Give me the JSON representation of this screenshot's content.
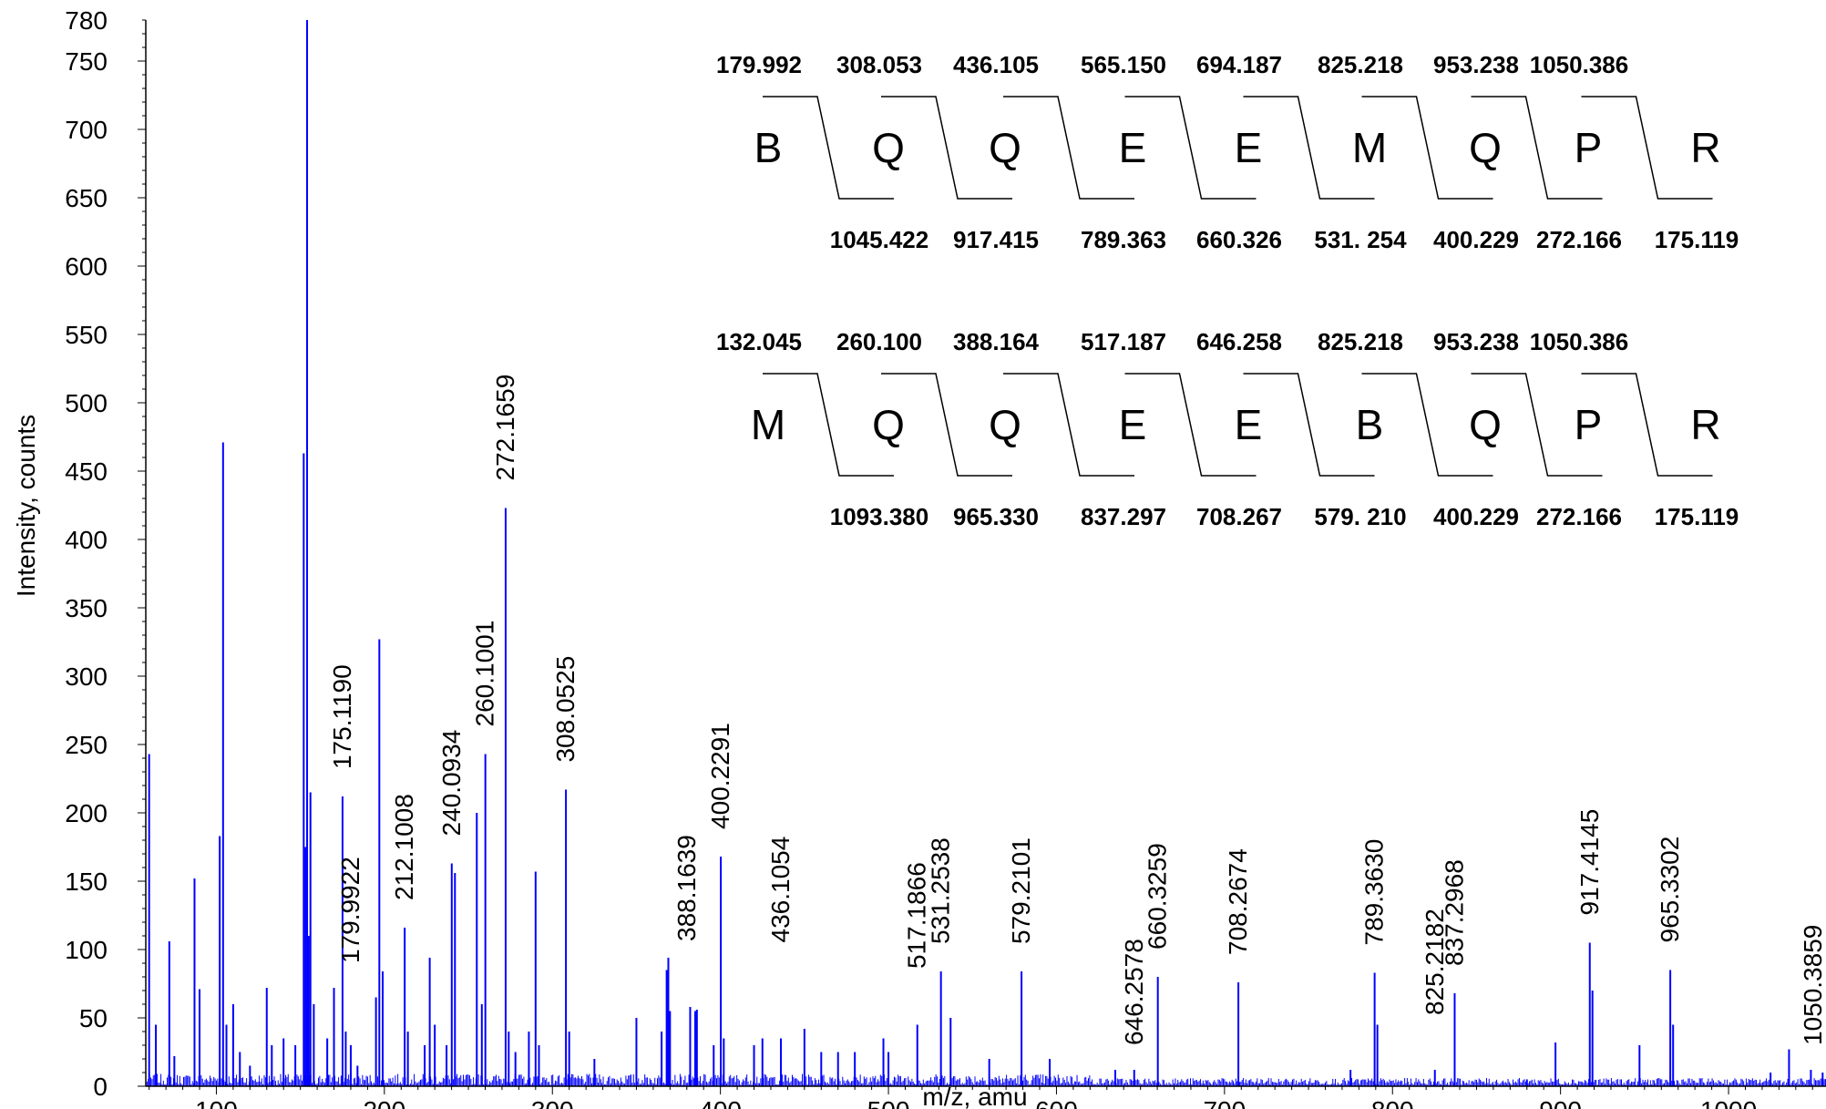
{
  "chart_data": {
    "type": "bar",
    "xlabel": "m/z, amu",
    "ylabel": "Intensity, counts",
    "xlim": [
      58,
      1058
    ],
    "ylim": [
      0,
      780
    ],
    "x_ticks": [
      100,
      200,
      300,
      400,
      500,
      600,
      700,
      800,
      900,
      1000
    ],
    "y_ticks": [
      0,
      50,
      100,
      150,
      200,
      250,
      300,
      350,
      400,
      450,
      500,
      550,
      600,
      650,
      700,
      750,
      780
    ],
    "series_color": "#0000ff",
    "peaks": [
      {
        "mz": 60.0,
        "i": 243
      },
      {
        "mz": 64.0,
        "i": 45
      },
      {
        "mz": 72.0,
        "i": 106
      },
      {
        "mz": 75.0,
        "i": 22
      },
      {
        "mz": 87.0,
        "i": 152
      },
      {
        "mz": 90.0,
        "i": 71
      },
      {
        "mz": 102.0,
        "i": 183
      },
      {
        "mz": 104.0,
        "i": 471
      },
      {
        "mz": 106.0,
        "i": 45
      },
      {
        "mz": 110.0,
        "i": 60
      },
      {
        "mz": 114.0,
        "i": 25
      },
      {
        "mz": 120.0,
        "i": 15
      },
      {
        "mz": 130.0,
        "i": 72
      },
      {
        "mz": 133.0,
        "i": 30
      },
      {
        "mz": 140.0,
        "i": 35
      },
      {
        "mz": 147.0,
        "i": 30
      },
      {
        "mz": 152.0,
        "i": 463
      },
      {
        "mz": 153.0,
        "i": 175
      },
      {
        "mz": 154.0,
        "i": 780
      },
      {
        "mz": 155.0,
        "i": 110
      },
      {
        "mz": 156.0,
        "i": 215
      },
      {
        "mz": 158.0,
        "i": 60
      },
      {
        "mz": 166.0,
        "i": 35
      },
      {
        "mz": 170.0,
        "i": 72
      },
      {
        "mz": 175.1,
        "i": 212
      },
      {
        "mz": 177.0,
        "i": 40
      },
      {
        "mz": 180.0,
        "i": 30
      },
      {
        "mz": 184.0,
        "i": 15
      },
      {
        "mz": 195.0,
        "i": 65
      },
      {
        "mz": 197.0,
        "i": 327
      },
      {
        "mz": 199.0,
        "i": 84
      },
      {
        "mz": 212.1,
        "i": 116
      },
      {
        "mz": 214.0,
        "i": 40
      },
      {
        "mz": 224.0,
        "i": 30
      },
      {
        "mz": 227.0,
        "i": 94
      },
      {
        "mz": 230.0,
        "i": 45
      },
      {
        "mz": 237.0,
        "i": 30
      },
      {
        "mz": 240.1,
        "i": 163
      },
      {
        "mz": 242.0,
        "i": 156
      },
      {
        "mz": 255.0,
        "i": 200
      },
      {
        "mz": 258.0,
        "i": 60
      },
      {
        "mz": 260.1,
        "i": 243
      },
      {
        "mz": 272.17,
        "i": 423
      },
      {
        "mz": 274.0,
        "i": 40
      },
      {
        "mz": 278.0,
        "i": 25
      },
      {
        "mz": 286.0,
        "i": 40
      },
      {
        "mz": 290.0,
        "i": 157
      },
      {
        "mz": 292.0,
        "i": 30
      },
      {
        "mz": 308.05,
        "i": 217
      },
      {
        "mz": 310.0,
        "i": 40
      },
      {
        "mz": 325.0,
        "i": 20
      },
      {
        "mz": 350.0,
        "i": 50
      },
      {
        "mz": 365.0,
        "i": 40
      },
      {
        "mz": 368.0,
        "i": 85
      },
      {
        "mz": 369.0,
        "i": 94
      },
      {
        "mz": 370.0,
        "i": 55
      },
      {
        "mz": 382.0,
        "i": 58
      },
      {
        "mz": 385.0,
        "i": 55
      },
      {
        "mz": 386.0,
        "i": 56
      },
      {
        "mz": 396.0,
        "i": 30
      },
      {
        "mz": 400.23,
        "i": 168
      },
      {
        "mz": 402.0,
        "i": 35
      },
      {
        "mz": 420.0,
        "i": 30
      },
      {
        "mz": 425.0,
        "i": 35
      },
      {
        "mz": 436.0,
        "i": 35
      },
      {
        "mz": 450.0,
        "i": 42
      },
      {
        "mz": 460.0,
        "i": 25
      },
      {
        "mz": 470.0,
        "i": 25
      },
      {
        "mz": 480.0,
        "i": 25
      },
      {
        "mz": 497.0,
        "i": 35
      },
      {
        "mz": 500.0,
        "i": 25
      },
      {
        "mz": 517.19,
        "i": 45
      },
      {
        "mz": 531.25,
        "i": 84
      },
      {
        "mz": 537.0,
        "i": 50
      },
      {
        "mz": 560.0,
        "i": 20
      },
      {
        "mz": 579.21,
        "i": 84
      },
      {
        "mz": 596.0,
        "i": 20
      },
      {
        "mz": 635.0,
        "i": 12
      },
      {
        "mz": 646.26,
        "i": 12
      },
      {
        "mz": 660.33,
        "i": 80
      },
      {
        "mz": 708.27,
        "i": 76
      },
      {
        "mz": 775.0,
        "i": 12
      },
      {
        "mz": 789.36,
        "i": 83
      },
      {
        "mz": 791.0,
        "i": 45
      },
      {
        "mz": 825.22,
        "i": 12
      },
      {
        "mz": 837.0,
        "i": 68
      },
      {
        "mz": 880.0,
        "i": 5
      },
      {
        "mz": 897.0,
        "i": 32
      },
      {
        "mz": 917.41,
        "i": 105
      },
      {
        "mz": 919.0,
        "i": 70
      },
      {
        "mz": 947.0,
        "i": 30
      },
      {
        "mz": 965.33,
        "i": 85
      },
      {
        "mz": 967.0,
        "i": 45
      },
      {
        "mz": 1025.0,
        "i": 10
      },
      {
        "mz": 1036.0,
        "i": 27
      },
      {
        "mz": 1049.0,
        "i": 12
      },
      {
        "mz": 1056.0,
        "i": 10
      }
    ],
    "peak_labels": [
      {
        "text": "175.1190",
        "mz": 175.1,
        "y": 232
      },
      {
        "text": "179.9922",
        "mz": 180.0,
        "y": 90
      },
      {
        "text": "212.1008",
        "mz": 212.1,
        "y": 136
      },
      {
        "text": "240.0934",
        "mz": 240.1,
        "y": 183
      },
      {
        "text": "260.1001",
        "mz": 260.1,
        "y": 263
      },
      {
        "text": "272.1659",
        "mz": 272.17,
        "y": 443
      },
      {
        "text": "308.0525",
        "mz": 308.05,
        "y": 237
      },
      {
        "text": "388.1639",
        "mz": 380.0,
        "y": 106
      },
      {
        "text": "400.2291",
        "mz": 400.23,
        "y": 188
      },
      {
        "text": "436.1054",
        "mz": 436.0,
        "y": 105
      },
      {
        "text": "517.1866",
        "mz": 517.19,
        "y": 86
      },
      {
        "text": "531.2538",
        "mz": 531.25,
        "y": 104
      },
      {
        "text": "579.2101",
        "mz": 579.21,
        "y": 104
      },
      {
        "text": "646.2578",
        "mz": 646.26,
        "y": 30
      },
      {
        "text": "660.3259",
        "mz": 660.33,
        "y": 100
      },
      {
        "text": "708.2674",
        "mz": 708.27,
        "y": 96
      },
      {
        "text": "789.3630",
        "mz": 789.36,
        "y": 103
      },
      {
        "text": "825.2182",
        "mz": 825.22,
        "y": 52
      },
      {
        "text": "837.2968",
        "mz": 837.0,
        "y": 88
      },
      {
        "text": "917.4145",
        "mz": 917.41,
        "y": 125
      },
      {
        "text": "965.3302",
        "mz": 965.33,
        "y": 105
      },
      {
        "text": "1050.3859",
        "mz": 1050.39,
        "y": 30
      }
    ]
  },
  "sequence_maps": [
    {
      "top_values": [
        "179.992",
        "308.053",
        "436.105",
        "565.150",
        "694.187",
        "825.218",
        "953.238",
        "1050.386"
      ],
      "residues": [
        "B",
        "Q",
        "Q",
        "E",
        "E",
        "M",
        "Q",
        "P",
        "R"
      ],
      "bottom_values": [
        "1045.422",
        "917.415",
        "789.363",
        "660.326",
        "531. 254",
        "400.229",
        "272.166",
        "175.119"
      ]
    },
    {
      "top_values": [
        "132.045",
        "260.100",
        "388.164",
        "517.187",
        "646.258",
        "825.218",
        "953.238",
        "1050.386"
      ],
      "residues": [
        "M",
        "Q",
        "Q",
        "E",
        "E",
        "B",
        "Q",
        "P",
        "R"
      ],
      "bottom_values": [
        "1093.380",
        "965.330",
        "837.297",
        "708.267",
        "579. 210",
        "400.229",
        "272.166",
        "175.119"
      ]
    }
  ]
}
